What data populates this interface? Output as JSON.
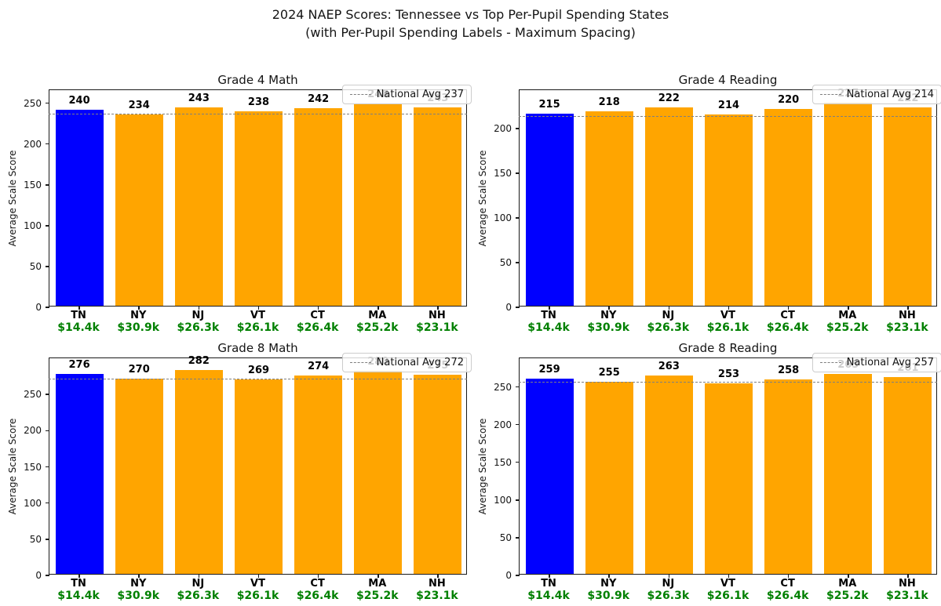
{
  "title": {
    "line1": "2024 NAEP Scores: Tennessee vs Top Per-Pupil Spending States",
    "line2": "(with Per-Pupil Spending Labels - Maximum Spacing)"
  },
  "colors": {
    "tn_bar": "#0000ff",
    "other_bars": "#ffa500",
    "spending_text": "#008000",
    "avg_line": "#7f7f7f"
  },
  "highlight_state": "TN",
  "chart_data": [
    {
      "type": "bar",
      "title": "Grade 4 Math",
      "ylabel": "Average Scale Score",
      "categories": [
        "TN",
        "NY",
        "NJ",
        "VT",
        "CT",
        "MA",
        "NH"
      ],
      "spending_labels": [
        "$14.4k",
        "$30.9k",
        "$26.3k",
        "$26.1k",
        "$26.4k",
        "$25.2k",
        "$23.1k"
      ],
      "values": [
        240,
        234,
        243,
        238,
        242,
        248,
        243
      ],
      "national_avg": 237,
      "legend_label": "National Avg 237",
      "ylim": [
        0,
        266
      ],
      "yticks": [
        0,
        50,
        100,
        150,
        200,
        250
      ],
      "legend_position": "upper right",
      "grid": false
    },
    {
      "type": "bar",
      "title": "Grade 4 Reading",
      "ylabel": "Average Scale Score",
      "categories": [
        "TN",
        "NY",
        "NJ",
        "VT",
        "CT",
        "MA",
        "NH"
      ],
      "spending_labels": [
        "$14.4k",
        "$30.9k",
        "$26.3k",
        "$26.1k",
        "$26.4k",
        "$25.2k",
        "$23.1k"
      ],
      "values": [
        215,
        218,
        222,
        214,
        220,
        227,
        222
      ],
      "national_avg": 214,
      "legend_label": "National Avg 214",
      "ylim": [
        0,
        243
      ],
      "yticks": [
        0,
        50,
        100,
        150,
        200
      ],
      "legend_position": "upper right",
      "grid": false
    },
    {
      "type": "bar",
      "title": "Grade 8 Math",
      "ylabel": "Average Scale Score",
      "categories": [
        "TN",
        "NY",
        "NJ",
        "VT",
        "CT",
        "MA",
        "NH"
      ],
      "spending_labels": [
        "$14.4k",
        "$30.9k",
        "$26.3k",
        "$26.1k",
        "$26.4k",
        "$25.2k",
        "$23.1k"
      ],
      "values": [
        276,
        270,
        282,
        269,
        274,
        280,
        275
      ],
      "national_avg": 272,
      "legend_label": "National Avg 272",
      "ylim": [
        0,
        300
      ],
      "yticks": [
        0,
        50,
        100,
        150,
        200,
        250
      ],
      "legend_position": "upper right",
      "grid": false
    },
    {
      "type": "bar",
      "title": "Grade 8 Reading",
      "ylabel": "Average Scale Score",
      "categories": [
        "TN",
        "NY",
        "NJ",
        "VT",
        "CT",
        "MA",
        "NH"
      ],
      "spending_labels": [
        "$14.4k",
        "$30.9k",
        "$26.3k",
        "$26.1k",
        "$26.4k",
        "$25.2k",
        "$23.1k"
      ],
      "values": [
        259,
        255,
        263,
        253,
        258,
        265,
        261
      ],
      "national_avg": 257,
      "legend_label": "National Avg 257",
      "ylim": [
        0,
        288
      ],
      "yticks": [
        0,
        50,
        100,
        150,
        200,
        250
      ],
      "legend_position": "upper right",
      "grid": false
    }
  ]
}
